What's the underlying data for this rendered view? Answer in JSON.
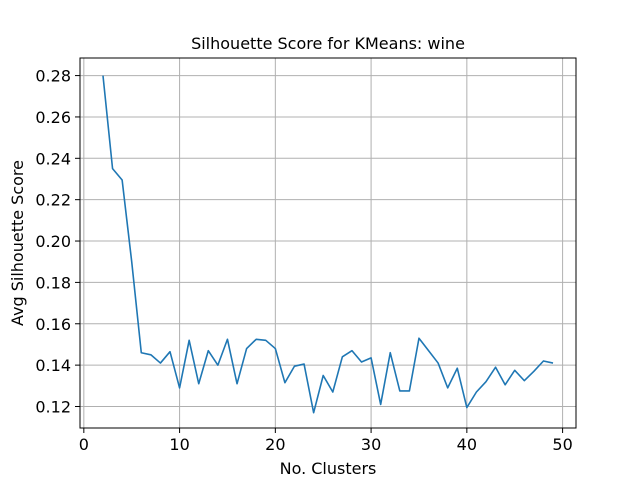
{
  "chart_data": {
    "type": "line",
    "title": "Silhouette Score for KMeans: wine",
    "xlabel": "No. Clusters",
    "ylabel": "Avg Silhouette Score",
    "xlim": [
      -0.4,
      51.4
    ],
    "ylim": [
      0.1096,
      0.2885
    ],
    "xticks": [
      0,
      10,
      20,
      30,
      40,
      50
    ],
    "yticks": [
      0.12,
      0.14,
      0.16,
      0.18,
      0.2,
      0.22,
      0.24,
      0.26,
      0.28
    ],
    "ytick_labels": [
      "0.12",
      "0.14",
      "0.16",
      "0.18",
      "0.20",
      "0.22",
      "0.24",
      "0.26",
      "0.28"
    ],
    "grid": true,
    "line_color": "#1f77b4",
    "series": [
      {
        "x": [
          2,
          3,
          4,
          5,
          6,
          7,
          8,
          9,
          10,
          11,
          12,
          13,
          14,
          15,
          16,
          17,
          18,
          19,
          20,
          21,
          22,
          23,
          24,
          25,
          26,
          27,
          28,
          29,
          30,
          31,
          32,
          33,
          34,
          35,
          36,
          37,
          38,
          39,
          40,
          41,
          42,
          43,
          44,
          45,
          46,
          47,
          48,
          49
        ],
        "values": [
          0.28,
          0.235,
          0.2295,
          0.19,
          0.146,
          0.145,
          0.141,
          0.1465,
          0.129,
          0.152,
          0.131,
          0.147,
          0.14,
          0.1525,
          0.131,
          0.148,
          0.1525,
          0.152,
          0.148,
          0.1315,
          0.1395,
          0.1405,
          0.117,
          0.135,
          0.127,
          0.144,
          0.147,
          0.1415,
          0.1435,
          0.121,
          0.146,
          0.1275,
          0.1275,
          0.153,
          0.147,
          0.141,
          0.129,
          0.1385,
          0.1195,
          0.127,
          0.132,
          0.139,
          0.1305,
          0.1375,
          0.1325,
          0.137,
          0.142,
          0.141
        ]
      }
    ]
  }
}
